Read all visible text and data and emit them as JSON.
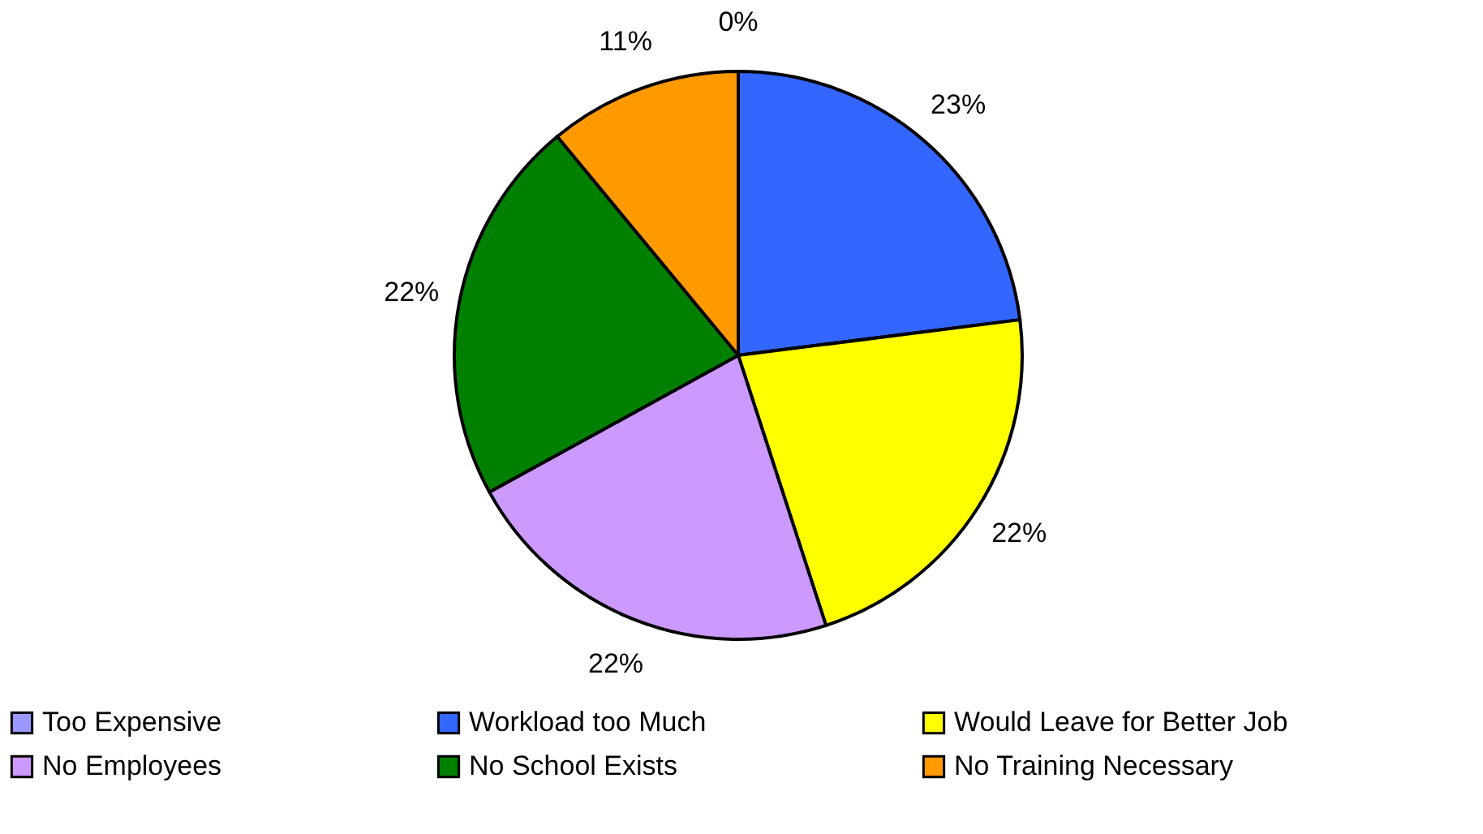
{
  "chart_data": {
    "type": "pie",
    "categories": [
      "Too Expensive",
      "Workload too Much",
      "Would Leave for Better Job",
      "No Employees",
      "No School Exists",
      "No Training Necessary"
    ],
    "values": [
      0,
      23,
      22,
      22,
      22,
      11
    ],
    "value_labels": [
      "0%",
      "23%",
      "22%",
      "22%",
      "22%",
      "11%"
    ],
    "colors": [
      "#9999ff",
      "#3366ff",
      "#ffff00",
      "#cc99ff",
      "#008000",
      "#ff9900"
    ],
    "legend": "bottom"
  }
}
